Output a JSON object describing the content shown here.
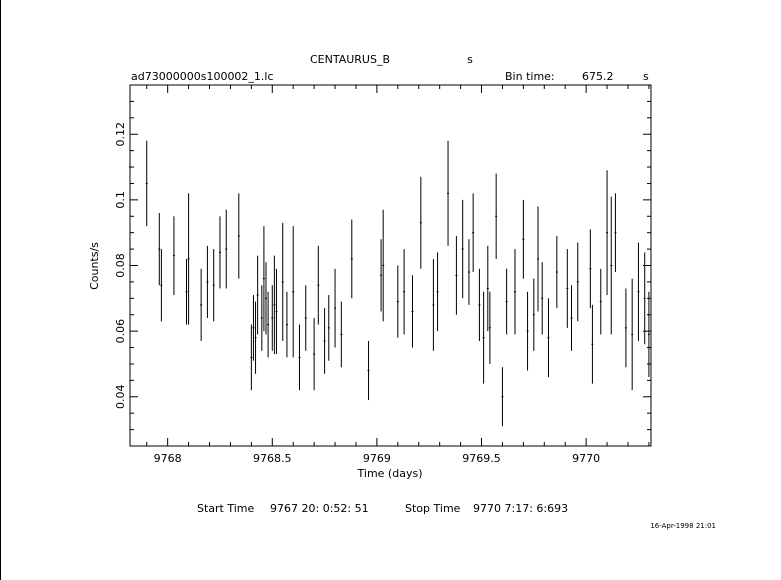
{
  "header": {
    "object": "CENTAURUS_B",
    "object_suffix": "s",
    "file": "ad73000000s100002_1.lc",
    "bin_label": "Bin time:",
    "bin_value": "675.2",
    "bin_unit": "s"
  },
  "footer": {
    "start_label": "Start Time",
    "start_value": "9767 20: 0:52: 51",
    "stop_label": "Stop Time",
    "stop_value": "9770  7:17: 6:693",
    "date_stamp": "16-Apr-1998 21:01"
  },
  "chart_data": {
    "type": "scatter",
    "title": "CENTAURUS_B",
    "xlabel": "Time (days)",
    "ylabel": "Counts/s",
    "xlim": [
      9767.82,
      9770.31
    ],
    "ylim": [
      0.025,
      0.135
    ],
    "x_ticks": [
      9768,
      9768.5,
      9769,
      9769.5,
      9770
    ],
    "x_tick_labels": [
      "9768",
      "9768.5",
      "9769",
      "9769.5",
      "9770"
    ],
    "y_ticks": [
      0.04,
      0.06,
      0.08,
      0.1,
      0.12
    ],
    "y_tick_labels": [
      "0.04",
      "0.06",
      "0.08",
      "0.1",
      "0.12"
    ],
    "grid": false,
    "series": [
      {
        "x": [
          9767.82,
          9767.9,
          9767.96,
          9767.97,
          9768.03,
          9768.09,
          9768.1,
          9768.16,
          9768.19,
          9768.22,
          9768.25,
          9768.28,
          9768.34,
          9768.4,
          9768.41,
          9768.42,
          9768.43,
          9768.45,
          9768.46,
          9768.47,
          9768.48,
          9768.5,
          9768.51,
          9768.52,
          9768.55,
          9768.57,
          9768.6,
          9768.63,
          9768.66,
          9768.7,
          9768.72,
          9768.75,
          9768.77,
          9768.8,
          9768.83,
          9768.88,
          9768.96,
          9769.02,
          9769.03,
          9769.1,
          9769.13,
          9769.17,
          9769.21,
          9769.27,
          9769.29,
          9769.34,
          9769.38,
          9769.41,
          9769.44,
          9769.46,
          9769.49,
          9769.51,
          9769.53,
          9769.54,
          9769.57,
          9769.6,
          9769.62,
          9769.66,
          9769.7,
          9769.72,
          9769.75,
          9769.77,
          9769.79,
          9769.82,
          9769.86,
          9769.91,
          9769.93,
          9769.96,
          9770.02,
          9770.03,
          9770.07,
          9770.1,
          9770.12,
          9770.14,
          9770.19,
          9770.22,
          9770.25,
          9770.28,
          9770.3
        ],
        "y": [
          0.11,
          0.105,
          0.085,
          0.074,
          0.083,
          0.072,
          0.082,
          0.068,
          0.075,
          0.074,
          0.084,
          0.085,
          0.089,
          0.052,
          0.061,
          0.058,
          0.071,
          0.064,
          0.076,
          0.07,
          0.062,
          0.064,
          0.068,
          0.066,
          0.075,
          0.062,
          0.072,
          0.052,
          0.064,
          0.053,
          0.074,
          0.057,
          0.061,
          0.067,
          0.059,
          0.082,
          0.048,
          0.077,
          0.08,
          0.069,
          0.072,
          0.066,
          0.093,
          0.068,
          0.072,
          0.102,
          0.077,
          0.085,
          0.078,
          0.09,
          0.068,
          0.058,
          0.073,
          0.061,
          0.095,
          0.04,
          0.069,
          0.072,
          0.088,
          0.06,
          0.065,
          0.082,
          0.07,
          0.058,
          0.078,
          0.073,
          0.064,
          0.075,
          0.079,
          0.056,
          0.069,
          0.09,
          0.08,
          0.09,
          0.061,
          0.059,
          0.072,
          0.07,
          0.059
        ],
        "err": [
          0.016,
          0.013,
          0.011,
          0.011,
          0.012,
          0.01,
          0.02,
          0.011,
          0.011,
          0.011,
          0.011,
          0.012,
          0.013,
          0.01,
          0.01,
          0.011,
          0.012,
          0.01,
          0.016,
          0.011,
          0.01,
          0.01,
          0.015,
          0.013,
          0.018,
          0.01,
          0.02,
          0.01,
          0.01,
          0.011,
          0.012,
          0.01,
          0.01,
          0.012,
          0.01,
          0.012,
          0.009,
          0.011,
          0.017,
          0.011,
          0.013,
          0.011,
          0.014,
          0.014,
          0.012,
          0.016,
          0.012,
          0.015,
          0.01,
          0.012,
          0.011,
          0.014,
          0.013,
          0.011,
          0.013,
          0.009,
          0.01,
          0.013,
          0.012,
          0.012,
          0.011,
          0.016,
          0.011,
          0.012,
          0.011,
          0.012,
          0.01,
          0.012,
          0.012,
          0.012,
          0.01,
          0.019,
          0.021,
          0.012,
          0.012,
          0.017,
          0.015,
          0.014,
          0.013
        ]
      }
    ]
  }
}
